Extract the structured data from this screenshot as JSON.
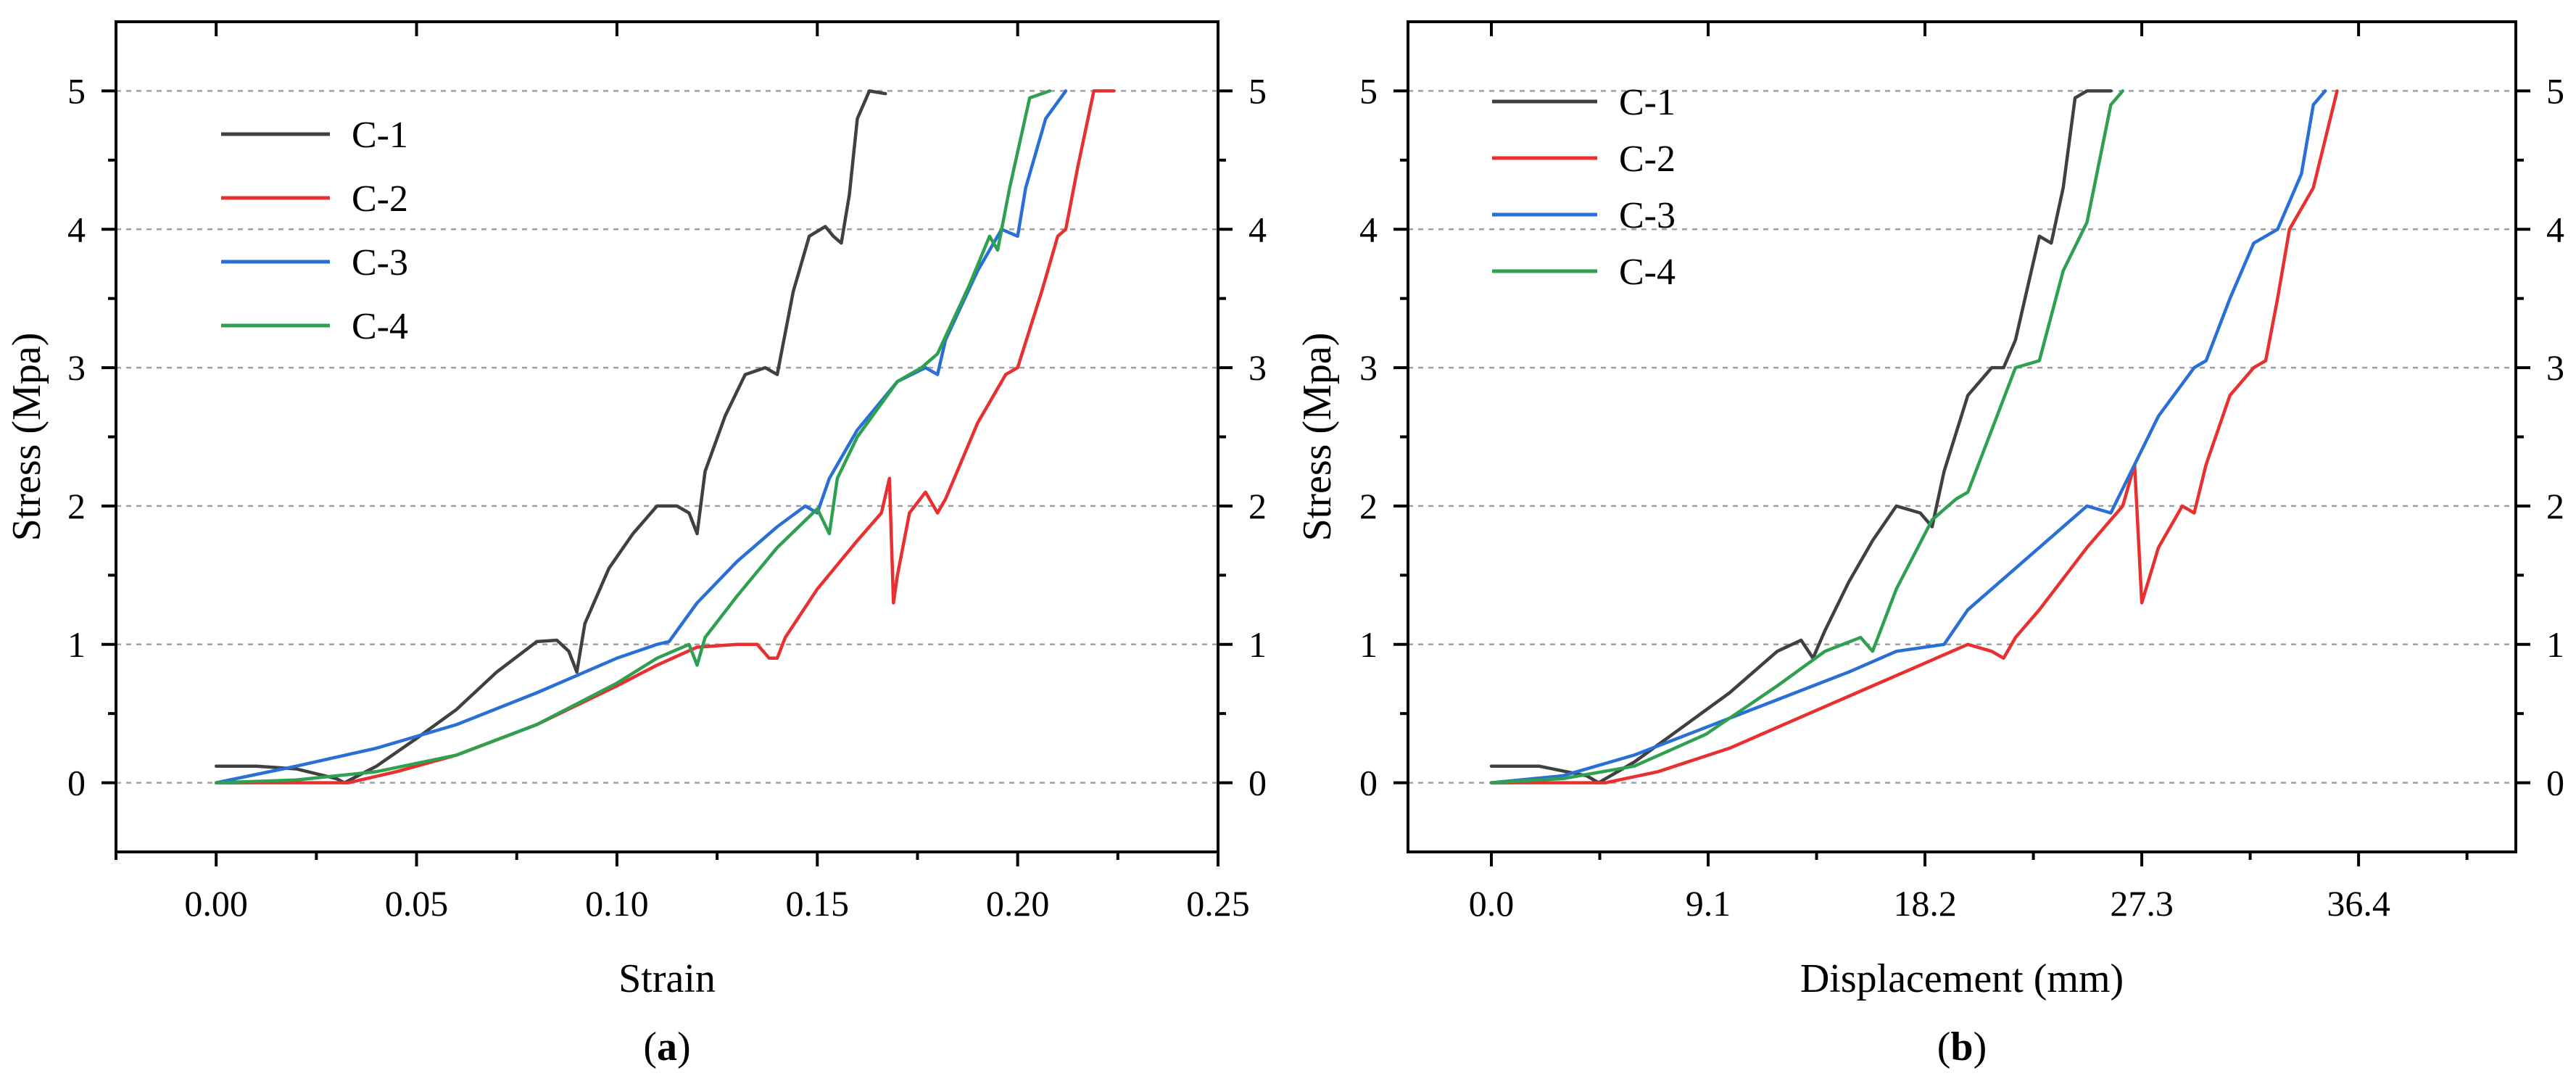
{
  "chart_data": [
    {
      "panel_label": "a",
      "type": "line",
      "xlabel": "Strain",
      "ylabel": "Stress (Mpa)",
      "xlim": [
        -0.025,
        0.25
      ],
      "ylim": [
        -0.5,
        5.5
      ],
      "xticks": [
        0.0,
        0.05,
        0.1,
        0.15,
        0.2,
        0.25
      ],
      "xtick_labels": [
        "0.00",
        "0.05",
        "0.10",
        "0.15",
        "0.20",
        "0.25"
      ],
      "yticks": [
        0,
        1,
        2,
        3,
        4,
        5
      ],
      "ytick_labels": [
        "0",
        "1",
        "2",
        "3",
        "4",
        "5"
      ],
      "right_axis_ticks": true,
      "grid": "horizontal-dashed",
      "legend_position": "top-left",
      "series": [
        {
          "name": "C-1",
          "color": "#404040",
          "x": [
            0,
            0.01,
            0.02,
            0.03,
            0.032,
            0.04,
            0.05,
            0.06,
            0.07,
            0.08,
            0.085,
            0.088,
            0.09,
            0.092,
            0.098,
            0.104,
            0.11,
            0.115,
            0.118,
            0.12,
            0.122,
            0.127,
            0.132,
            0.137,
            0.14,
            0.141,
            0.144,
            0.148,
            0.152,
            0.154,
            0.156,
            0.158,
            0.16,
            0.163,
            0.167
          ],
          "y": [
            0.12,
            0.12,
            0.1,
            0.03,
            0.0,
            0.12,
            0.32,
            0.53,
            0.8,
            1.02,
            1.03,
            0.95,
            0.8,
            1.15,
            1.55,
            1.8,
            2.0,
            2.0,
            1.95,
            1.8,
            2.25,
            2.65,
            2.95,
            3.0,
            2.95,
            3.1,
            3.55,
            3.95,
            4.02,
            3.95,
            3.9,
            4.25,
            4.8,
            5.0,
            4.98
          ]
        },
        {
          "name": "C-2",
          "color": "#e83030",
          "x": [
            0,
            0.02,
            0.033,
            0.045,
            0.06,
            0.08,
            0.1,
            0.11,
            0.12,
            0.13,
            0.135,
            0.138,
            0.14,
            0.142,
            0.15,
            0.16,
            0.166,
            0.168,
            0.169,
            0.17,
            0.173,
            0.177,
            0.18,
            0.182,
            0.19,
            0.197,
            0.2,
            0.206,
            0.21,
            0.212,
            0.215,
            0.219,
            0.224
          ],
          "y": [
            0,
            0,
            0.0,
            0.08,
            0.2,
            0.42,
            0.7,
            0.85,
            0.98,
            1.0,
            1.0,
            0.9,
            0.9,
            1.05,
            1.4,
            1.75,
            1.95,
            2.2,
            1.3,
            1.5,
            1.95,
            2.1,
            1.95,
            2.05,
            2.6,
            2.95,
            3.0,
            3.55,
            3.95,
            4.0,
            4.45,
            5.0,
            5.0
          ]
        },
        {
          "name": "C-3",
          "color": "#2a6fd6",
          "x": [
            0,
            0.02,
            0.04,
            0.06,
            0.08,
            0.1,
            0.11,
            0.113,
            0.12,
            0.13,
            0.14,
            0.147,
            0.15,
            0.153,
            0.16,
            0.17,
            0.177,
            0.18,
            0.182,
            0.19,
            0.196,
            0.2,
            0.202,
            0.207,
            0.212
          ],
          "y": [
            0,
            0.12,
            0.25,
            0.42,
            0.65,
            0.9,
            1.0,
            1.02,
            1.3,
            1.6,
            1.85,
            2.0,
            1.95,
            2.2,
            2.55,
            2.9,
            3.0,
            2.95,
            3.2,
            3.7,
            4.0,
            3.95,
            4.3,
            4.8,
            5.0
          ]
        },
        {
          "name": "C-4",
          "color": "#2fa050",
          "x": [
            0,
            0.02,
            0.04,
            0.06,
            0.08,
            0.1,
            0.11,
            0.118,
            0.12,
            0.122,
            0.13,
            0.14,
            0.15,
            0.153,
            0.155,
            0.16,
            0.17,
            0.176,
            0.18,
            0.188,
            0.193,
            0.195,
            0.198,
            0.203,
            0.208
          ],
          "y": [
            0,
            0.02,
            0.08,
            0.2,
            0.42,
            0.72,
            0.9,
            1.0,
            0.85,
            1.05,
            1.35,
            1.7,
            1.98,
            1.8,
            2.2,
            2.5,
            2.9,
            3.0,
            3.1,
            3.6,
            3.95,
            3.85,
            4.3,
            4.95,
            5.0
          ]
        }
      ]
    },
    {
      "panel_label": "b",
      "type": "line",
      "xlabel": "Displacement (mm)",
      "ylabel": "Stress (Mpa)",
      "xlim": [
        -3.5,
        43
      ],
      "ylim": [
        -0.5,
        5.5
      ],
      "xticks": [
        0.0,
        9.1,
        18.2,
        27.3,
        36.4
      ],
      "xtick_labels": [
        "0.0",
        "9.1",
        "18.2",
        "27.3",
        "36.4"
      ],
      "yticks": [
        0,
        1,
        2,
        3,
        4,
        5
      ],
      "ytick_labels": [
        "0",
        "1",
        "2",
        "3",
        "4",
        "5"
      ],
      "right_axis_ticks": true,
      "grid": "horizontal-dashed",
      "legend_position": "top-left",
      "series": [
        {
          "name": "C-1",
          "color": "#404040",
          "x": [
            0,
            2,
            4,
            4.5,
            6,
            8,
            10,
            12,
            13,
            13.5,
            14,
            15,
            16,
            17,
            18,
            18.5,
            19,
            20,
            21,
            21.5,
            22,
            23,
            23.5,
            24,
            24.5,
            25,
            26
          ],
          "y": [
            0.12,
            0.12,
            0.05,
            0.0,
            0.15,
            0.4,
            0.65,
            0.95,
            1.03,
            0.9,
            1.1,
            1.45,
            1.75,
            2.0,
            1.95,
            1.85,
            2.25,
            2.8,
            3.0,
            3.0,
            3.2,
            3.95,
            3.9,
            4.3,
            4.95,
            5.0,
            5.0
          ]
        },
        {
          "name": "C-2",
          "color": "#e83030",
          "x": [
            0,
            4.8,
            7,
            10,
            14,
            18,
            20,
            21,
            21.5,
            22,
            23,
            25,
            26.5,
            27,
            27.3,
            28,
            29,
            29.5,
            30,
            31,
            32,
            32.5,
            33,
            33.5,
            34.5,
            35.5
          ],
          "y": [
            0,
            0.0,
            0.08,
            0.25,
            0.55,
            0.85,
            1.0,
            0.95,
            0.9,
            1.05,
            1.25,
            1.7,
            2.0,
            2.3,
            1.3,
            1.7,
            2.0,
            1.95,
            2.3,
            2.8,
            3.0,
            3.05,
            3.5,
            4.0,
            4.3,
            5.0
          ]
        },
        {
          "name": "C-3",
          "color": "#2a6fd6",
          "x": [
            0,
            3,
            6,
            9,
            12,
            15,
            17,
            19,
            20,
            22,
            24,
            25,
            26,
            27,
            28,
            29.5,
            30,
            31,
            32,
            33,
            34,
            34.5,
            35
          ],
          "y": [
            0,
            0.05,
            0.2,
            0.4,
            0.6,
            0.8,
            0.95,
            1.0,
            1.25,
            1.55,
            1.85,
            2.0,
            1.95,
            2.3,
            2.65,
            3.0,
            3.05,
            3.5,
            3.9,
            4.0,
            4.4,
            4.9,
            5.0
          ]
        },
        {
          "name": "C-4",
          "color": "#2fa050",
          "x": [
            0,
            3,
            6,
            9,
            12,
            14,
            15.5,
            16,
            17,
            18.5,
            19.5,
            20,
            21,
            22,
            23,
            24,
            25,
            26,
            26.5
          ],
          "y": [
            0,
            0.03,
            0.12,
            0.35,
            0.7,
            0.95,
            1.05,
            0.95,
            1.4,
            1.9,
            2.05,
            2.1,
            2.55,
            3.0,
            3.05,
            3.7,
            4.05,
            4.9,
            5.0
          ]
        }
      ]
    }
  ]
}
